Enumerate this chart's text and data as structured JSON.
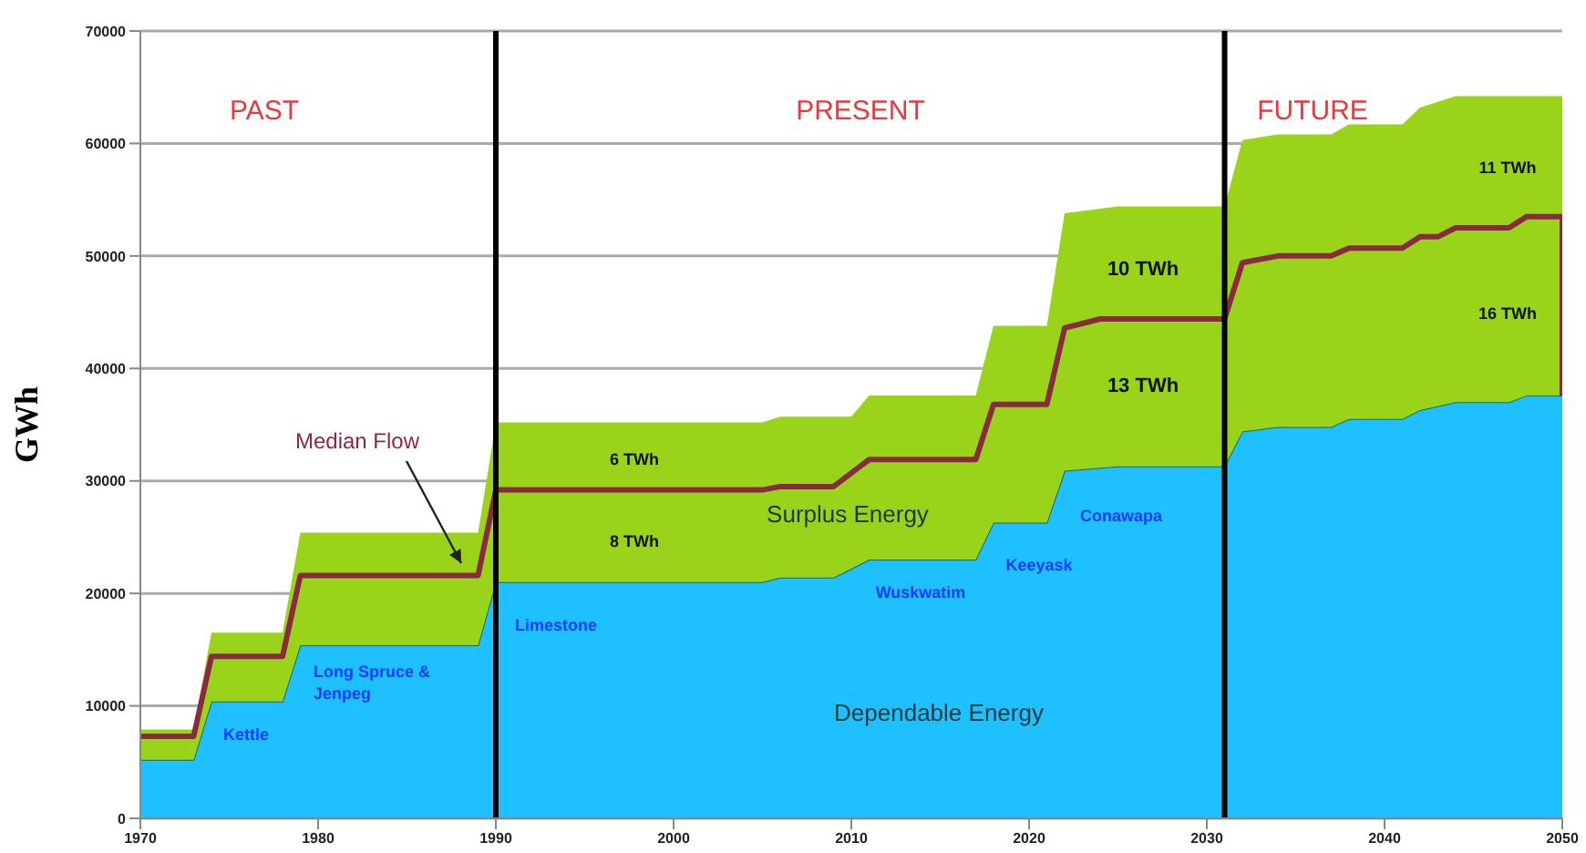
{
  "chart_data": {
    "type": "area",
    "stacked": true,
    "ylabel": "GWh",
    "x": [
      1970,
      1973,
      1974,
      1978,
      1979,
      1989,
      1990,
      2005,
      2006,
      2009,
      2010,
      2011,
      2017,
      2018,
      2021,
      2022,
      2025,
      2031,
      2032,
      2034,
      2037,
      2038,
      2041,
      2042,
      2044,
      2047,
      2048,
      2050
    ],
    "series": [
      {
        "name": "Dependable Energy",
        "color": "#1ec0ff",
        "values": [
          5200,
          5200,
          10400,
          10400,
          15400,
          15400,
          21000,
          21000,
          21400,
          21400,
          22200,
          23000,
          23000,
          26300,
          26300,
          30900,
          31300,
          31300,
          34400,
          34800,
          34800,
          35500,
          35500,
          36300,
          37000,
          37000,
          37600,
          37600
        ]
      },
      {
        "name": "Surplus Energy",
        "color": "#99d41a",
        "values": [
          2700,
          2700,
          6100,
          6100,
          10000,
          10000,
          14200,
          14200,
          14300,
          14300,
          13500,
          14600,
          14600,
          17500,
          17500,
          22900,
          23100,
          23100,
          25900,
          26000,
          26000,
          26200,
          26200,
          26900,
          27200,
          27200,
          26600,
          26600
        ]
      },
      {
        "name": "Median Flow",
        "type": "line",
        "color": "#8b2942",
        "x": [
          1970,
          1973,
          1974,
          1978,
          1979,
          1989,
          1990,
          2005,
          2006,
          2009,
          2011,
          2017,
          2018,
          2021,
          2022,
          2024,
          2031,
          2032,
          2034,
          2037,
          2038,
          2041,
          2042,
          2043,
          2044,
          2047,
          2048,
          2050,
          2050
        ],
        "values": [
          7300,
          7300,
          14400,
          14400,
          21600,
          21600,
          29200,
          29200,
          29500,
          29500,
          31900,
          31900,
          36800,
          36800,
          43600,
          44400,
          44400,
          49400,
          50000,
          50000,
          50700,
          50700,
          51700,
          51700,
          52500,
          52500,
          53500,
          53500,
          37600
        ]
      }
    ],
    "xlim": [
      1970,
      2050
    ],
    "xticks": [
      1970,
      1980,
      1990,
      2000,
      2010,
      2020,
      2030,
      2040,
      2050
    ],
    "ylim": [
      0,
      70000
    ],
    "yticks": [
      0,
      10000,
      20000,
      30000,
      40000,
      50000,
      60000,
      70000
    ],
    "grid": "y",
    "legend": false,
    "marker": "none",
    "line_style": "solid",
    "ref_lines": [
      {
        "axis": "x",
        "value": 1990,
        "color": "#000000"
      },
      {
        "axis": "x",
        "value": 2031,
        "color": "#000000"
      }
    ],
    "annotations": [
      "PAST",
      "PRESENT",
      "FUTURE",
      "6 TWh",
      "8 TWh",
      "10 TWh",
      "13 TWh",
      "11 TWh",
      "16 TWh",
      "Kettle",
      "Long Spruce & Jenpeg",
      "Limestone",
      "Wuskwatim",
      "Keeyask",
      "Conawapa"
    ]
  }
}
